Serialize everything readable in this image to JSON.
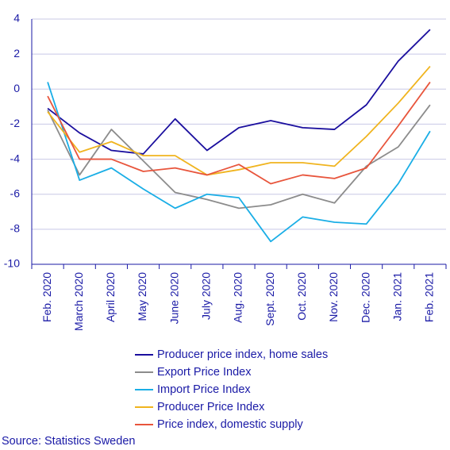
{
  "chart_data": {
    "type": "line",
    "categories": [
      "Feb. 2020",
      "March 2020",
      "April 2020",
      "May 2020",
      "June 2020",
      "July 2020",
      "Aug. 2020",
      "Sept. 2020",
      "Oct. 2020",
      "Nov. 2020",
      "Dec. 2020",
      "Jan. 2021",
      "Feb. 2021"
    ],
    "ylim": [
      -10,
      4
    ],
    "yticks": [
      -10,
      -8,
      -6,
      -4,
      -2,
      0,
      2,
      4
    ],
    "grid": true,
    "legend_position": "bottom",
    "series": [
      {
        "name": "Producer price index, home sales",
        "color": "#1a0e9e",
        "values": [
          -1.1,
          -2.5,
          -3.5,
          -3.7,
          -1.7,
          -3.5,
          -2.2,
          -1.8,
          -2.2,
          -2.3,
          -0.9,
          1.6,
          3.4
        ]
      },
      {
        "name": "Export Price Index",
        "color": "#8c8c8c",
        "values": [
          -1.2,
          -4.9,
          -2.3,
          -4.1,
          -5.9,
          -6.3,
          -6.8,
          -6.6,
          -6.0,
          -6.5,
          -4.4,
          -3.3,
          -0.9
        ]
      },
      {
        "name": "Import Price Index",
        "color": "#1aaee6",
        "values": [
          0.4,
          -5.2,
          -4.5,
          -5.7,
          -6.8,
          -6.0,
          -6.2,
          -8.7,
          -7.3,
          -7.6,
          -7.7,
          -5.4,
          -2.4
        ]
      },
      {
        "name": "Producer Price Index",
        "color": "#f0b41e",
        "values": [
          -1.3,
          -3.6,
          -3.0,
          -3.8,
          -3.8,
          -4.9,
          -4.6,
          -4.2,
          -4.2,
          -4.4,
          -2.7,
          -0.8,
          1.3
        ]
      },
      {
        "name": "Price index, domestic supply",
        "color": "#e8553c",
        "values": [
          -0.4,
          -4.0,
          -4.0,
          -4.7,
          -4.5,
          -4.9,
          -4.3,
          -5.4,
          -4.9,
          -5.1,
          -4.5,
          -2.1,
          0.4
        ]
      }
    ]
  },
  "source": "Source: Statistics Sweden"
}
